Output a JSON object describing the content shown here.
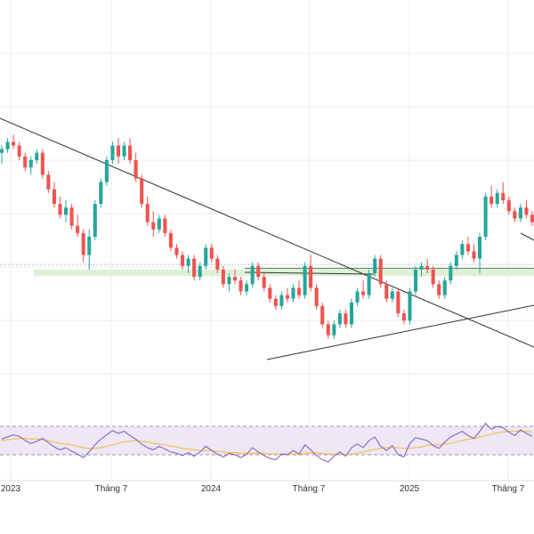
{
  "colors": {
    "up": "#26a69a",
    "down": "#ef5350",
    "rsi_line": "#7e57c2",
    "rsi_ma": "#f2c14e",
    "rsi_band": "#ede7f6",
    "support_zone": "#dff0d8",
    "trendline": "#333333",
    "reference_line": "#7ea6c8",
    "grid": "#eeeeee"
  },
  "chart_data": [
    {
      "type": "candlestick",
      "x_axis": {
        "labels": [
          "2023",
          "Tháng 7",
          "2024",
          "Tháng 7",
          "2025",
          "Tháng 7"
        ]
      },
      "grid": true,
      "series_note": "weekly candles, values are relative price levels (0 = bottom of view, 100 = top)",
      "candles": [
        {
          "o": 63,
          "h": 65,
          "l": 60,
          "c": 64
        },
        {
          "o": 64,
          "h": 67,
          "l": 63,
          "c": 66
        },
        {
          "o": 66,
          "h": 68,
          "l": 64,
          "c": 65
        },
        {
          "o": 65,
          "h": 66,
          "l": 61,
          "c": 62
        },
        {
          "o": 62,
          "h": 63,
          "l": 58,
          "c": 59
        },
        {
          "o": 59,
          "h": 62,
          "l": 57,
          "c": 61
        },
        {
          "o": 61,
          "h": 64,
          "l": 60,
          "c": 63
        },
        {
          "o": 63,
          "h": 64,
          "l": 56,
          "c": 57
        },
        {
          "o": 57,
          "h": 58,
          "l": 52,
          "c": 53
        },
        {
          "o": 53,
          "h": 55,
          "l": 48,
          "c": 49
        },
        {
          "o": 49,
          "h": 51,
          "l": 45,
          "c": 46
        },
        {
          "o": 46,
          "h": 50,
          "l": 44,
          "c": 48
        },
        {
          "o": 48,
          "h": 49,
          "l": 42,
          "c": 43
        },
        {
          "o": 43,
          "h": 46,
          "l": 40,
          "c": 41
        },
        {
          "o": 41,
          "h": 42,
          "l": 33,
          "c": 35
        },
        {
          "o": 35,
          "h": 42,
          "l": 31,
          "c": 40
        },
        {
          "o": 40,
          "h": 50,
          "l": 39,
          "c": 49
        },
        {
          "o": 49,
          "h": 56,
          "l": 48,
          "c": 55
        },
        {
          "o": 55,
          "h": 62,
          "l": 54,
          "c": 61
        },
        {
          "o": 61,
          "h": 66,
          "l": 60,
          "c": 65
        },
        {
          "o": 65,
          "h": 67,
          "l": 60,
          "c": 62
        },
        {
          "o": 62,
          "h": 66,
          "l": 61,
          "c": 65
        },
        {
          "o": 65,
          "h": 67,
          "l": 60,
          "c": 61
        },
        {
          "o": 61,
          "h": 63,
          "l": 55,
          "c": 56
        },
        {
          "o": 56,
          "h": 57,
          "l": 48,
          "c": 49
        },
        {
          "o": 49,
          "h": 51,
          "l": 43,
          "c": 44
        },
        {
          "o": 44,
          "h": 47,
          "l": 40,
          "c": 42
        },
        {
          "o": 42,
          "h": 46,
          "l": 41,
          "c": 45
        },
        {
          "o": 45,
          "h": 46,
          "l": 40,
          "c": 41
        },
        {
          "o": 41,
          "h": 42,
          "l": 36,
          "c": 37
        },
        {
          "o": 37,
          "h": 38,
          "l": 34,
          "c": 35
        },
        {
          "o": 35,
          "h": 36,
          "l": 31,
          "c": 32
        },
        {
          "o": 32,
          "h": 35,
          "l": 30,
          "c": 34
        },
        {
          "o": 34,
          "h": 35,
          "l": 28,
          "c": 29
        },
        {
          "o": 29,
          "h": 33,
          "l": 28,
          "c": 32
        },
        {
          "o": 32,
          "h": 38,
          "l": 31,
          "c": 37
        },
        {
          "o": 37,
          "h": 38,
          "l": 33,
          "c": 34
        },
        {
          "o": 34,
          "h": 35,
          "l": 30,
          "c": 31
        },
        {
          "o": 31,
          "h": 32,
          "l": 26,
          "c": 27
        },
        {
          "o": 27,
          "h": 30,
          "l": 25,
          "c": 29
        },
        {
          "o": 29,
          "h": 31,
          "l": 27,
          "c": 28
        },
        {
          "o": 28,
          "h": 29,
          "l": 24,
          "c": 25
        },
        {
          "o": 25,
          "h": 28,
          "l": 24,
          "c": 27
        },
        {
          "o": 27,
          "h": 33,
          "l": 26,
          "c": 32
        },
        {
          "o": 32,
          "h": 33,
          "l": 28,
          "c": 29
        },
        {
          "o": 29,
          "h": 30,
          "l": 25,
          "c": 26
        },
        {
          "o": 26,
          "h": 27,
          "l": 22,
          "c": 23
        },
        {
          "o": 23,
          "h": 24,
          "l": 20,
          "c": 21
        },
        {
          "o": 21,
          "h": 25,
          "l": 20,
          "c": 24
        },
        {
          "o": 24,
          "h": 26,
          "l": 22,
          "c": 23
        },
        {
          "o": 23,
          "h": 27,
          "l": 22,
          "c": 26
        },
        {
          "o": 26,
          "h": 28,
          "l": 23,
          "c": 24
        },
        {
          "o": 24,
          "h": 33,
          "l": 23,
          "c": 32
        },
        {
          "o": 32,
          "h": 35,
          "l": 25,
          "c": 26
        },
        {
          "o": 26,
          "h": 27,
          "l": 20,
          "c": 21
        },
        {
          "o": 21,
          "h": 22,
          "l": 15,
          "c": 16
        },
        {
          "o": 16,
          "h": 17,
          "l": 12,
          "c": 13
        },
        {
          "o": 13,
          "h": 17,
          "l": 12,
          "c": 16
        },
        {
          "o": 16,
          "h": 20,
          "l": 15,
          "c": 19
        },
        {
          "o": 19,
          "h": 20,
          "l": 15,
          "c": 16
        },
        {
          "o": 16,
          "h": 23,
          "l": 15,
          "c": 22
        },
        {
          "o": 22,
          "h": 26,
          "l": 21,
          "c": 25
        },
        {
          "o": 25,
          "h": 28,
          "l": 23,
          "c": 24
        },
        {
          "o": 24,
          "h": 31,
          "l": 23,
          "c": 30
        },
        {
          "o": 30,
          "h": 35,
          "l": 29,
          "c": 34
        },
        {
          "o": 34,
          "h": 35,
          "l": 26,
          "c": 27
        },
        {
          "o": 27,
          "h": 28,
          "l": 22,
          "c": 23
        },
        {
          "o": 23,
          "h": 26,
          "l": 22,
          "c": 25
        },
        {
          "o": 25,
          "h": 26,
          "l": 18,
          "c": 19
        },
        {
          "o": 19,
          "h": 20,
          "l": 16,
          "c": 17
        },
        {
          "o": 17,
          "h": 26,
          "l": 16,
          "c": 25
        },
        {
          "o": 25,
          "h": 32,
          "l": 24,
          "c": 31
        },
        {
          "o": 31,
          "h": 33,
          "l": 29,
          "c": 32
        },
        {
          "o": 32,
          "h": 34,
          "l": 30,
          "c": 31
        },
        {
          "o": 31,
          "h": 32,
          "l": 26,
          "c": 27
        },
        {
          "o": 27,
          "h": 28,
          "l": 23,
          "c": 24
        },
        {
          "o": 24,
          "h": 29,
          "l": 23,
          "c": 28
        },
        {
          "o": 28,
          "h": 33,
          "l": 27,
          "c": 32
        },
        {
          "o": 32,
          "h": 36,
          "l": 31,
          "c": 35
        },
        {
          "o": 35,
          "h": 39,
          "l": 34,
          "c": 38
        },
        {
          "o": 38,
          "h": 40,
          "l": 35,
          "c": 36
        },
        {
          "o": 36,
          "h": 38,
          "l": 33,
          "c": 34
        },
        {
          "o": 34,
          "h": 41,
          "l": 30,
          "c": 40
        },
        {
          "o": 40,
          "h": 52,
          "l": 39,
          "c": 51
        },
        {
          "o": 51,
          "h": 54,
          "l": 48,
          "c": 49
        },
        {
          "o": 49,
          "h": 53,
          "l": 48,
          "c": 52
        },
        {
          "o": 52,
          "h": 55,
          "l": 49,
          "c": 50
        },
        {
          "o": 50,
          "h": 51,
          "l": 46,
          "c": 47
        },
        {
          "o": 47,
          "h": 48,
          "l": 44,
          "c": 45
        },
        {
          "o": 45,
          "h": 49,
          "l": 44,
          "c": 48
        },
        {
          "o": 48,
          "h": 50,
          "l": 45,
          "c": 46
        },
        {
          "o": 46,
          "h": 47,
          "l": 43,
          "c": 44
        }
      ]
    },
    {
      "type": "line",
      "series": [
        {
          "name": "RSI",
          "values": [
            52,
            55,
            58,
            56,
            50,
            46,
            49,
            53,
            47,
            41,
            37,
            40,
            35,
            31,
            26,
            34,
            44,
            52,
            58,
            64,
            60,
            63,
            57,
            52,
            45,
            40,
            37,
            42,
            38,
            34,
            32,
            29,
            33,
            28,
            34,
            42,
            36,
            31,
            27,
            32,
            30,
            26,
            31,
            40,
            34,
            29,
            25,
            23,
            31,
            30,
            36,
            31,
            44,
            37,
            29,
            23,
            20,
            28,
            34,
            28,
            40,
            45,
            40,
            50,
            55,
            42,
            36,
            43,
            30,
            27,
            46,
            54,
            52,
            50,
            43,
            39,
            48,
            55,
            59,
            63,
            57,
            53,
            63,
            74,
            66,
            70,
            68,
            62,
            57,
            65,
            60,
            56
          ]
        },
        {
          "name": "MA",
          "values": [
            50,
            51,
            52,
            53,
            53,
            52,
            52,
            51,
            50,
            48,
            46,
            45,
            44,
            42,
            40,
            39,
            39,
            40,
            42,
            44,
            46,
            48,
            49,
            50,
            49,
            48,
            46,
            45,
            44,
            42,
            41,
            39,
            38,
            37,
            36,
            36,
            36,
            35,
            34,
            33,
            33,
            32,
            32,
            32,
            32,
            32,
            31,
            31,
            31,
            31,
            31,
            31,
            32,
            33,
            33,
            32,
            31,
            31,
            31,
            30,
            31,
            32,
            34,
            36,
            38,
            39,
            40,
            40,
            40,
            39,
            39,
            40,
            41,
            43,
            44,
            44,
            45,
            46,
            48,
            50,
            52,
            53,
            55,
            57,
            59,
            61,
            62,
            63,
            63,
            63,
            63,
            62
          ]
        }
      ],
      "ylim": [
        0,
        100
      ],
      "bands": [
        30,
        70
      ]
    }
  ],
  "axis": {
    "labels": [
      {
        "id": "x-2023",
        "text": "2023"
      },
      {
        "id": "x-jul-2023",
        "text": "Tháng 7"
      },
      {
        "id": "x-2024",
        "text": "2024"
      },
      {
        "id": "x-jul-2024",
        "text": "Tháng 7"
      },
      {
        "id": "x-2025",
        "text": "2025"
      },
      {
        "id": "x-jul-2025",
        "text": "Tháng 7"
      }
    ]
  }
}
